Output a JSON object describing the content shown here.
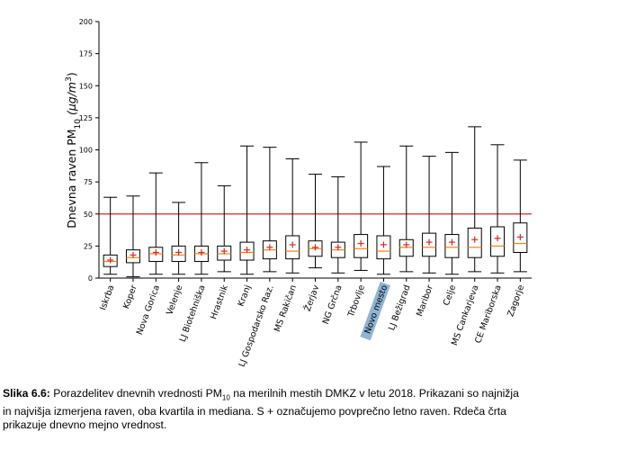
{
  "chart_data": {
    "type": "boxplot",
    "ylabel": "Dnevna raven PM",
    "ylabel_sub": "10",
    "ylabel_unit": " (µg/m",
    "ylabel_sup": "3",
    "ylabel_close": ")",
    "ylim": [
      0,
      200
    ],
    "yticks": [
      0,
      25,
      50,
      75,
      100,
      125,
      150,
      175,
      200
    ],
    "limit_value": 50,
    "limit_color": "#d62728",
    "median_color": "#ff7f0e",
    "mean_color": "#d62728",
    "highlight_color": "#8fb4d4",
    "highlight_category": "Novo mesto",
    "categories": [
      "Iskrba",
      "Koper",
      "Nova Gorica",
      "Velenje",
      "LJ Biotehniška",
      "Hrastnik",
      "Kranj",
      "LJ Gospodarsko Raz.",
      "MS Rakičan",
      "Žerjav",
      "NG Grčna",
      "Trbovlje",
      "Novo mesto",
      "LJ Bežigrad",
      "Maribor",
      "Celje",
      "MS Cankarjeva",
      "CE Mariborska",
      "Zagorje"
    ],
    "series": [
      {
        "whisker_low": [
          3,
          1,
          3,
          3,
          3,
          5,
          3,
          5,
          4,
          8,
          4,
          6,
          3,
          5,
          4,
          3,
          5,
          4,
          5
        ],
        "q1": [
          9,
          12,
          13,
          13,
          13,
          14,
          14,
          15,
          15,
          17,
          16,
          16,
          15,
          17,
          17,
          16,
          16,
          17,
          20
        ],
        "median": [
          13,
          16,
          19,
          18,
          19,
          19,
          20,
          22,
          21,
          23,
          22,
          23,
          21,
          24,
          24,
          24,
          24,
          25,
          27
        ],
        "q3": [
          18,
          22,
          24,
          25,
          25,
          25,
          28,
          29,
          33,
          29,
          28,
          34,
          33,
          30,
          35,
          34,
          39,
          40,
          43
        ],
        "whisker_high": [
          63,
          64,
          82,
          59,
          90,
          72,
          103,
          102,
          93,
          81,
          79,
          106,
          87,
          103,
          95,
          98,
          118,
          104,
          92
        ],
        "mean": [
          14,
          18,
          20,
          20,
          20,
          21,
          22,
          24,
          26,
          24,
          24,
          27,
          26,
          26,
          28,
          28,
          30,
          31,
          32
        ]
      }
    ]
  },
  "caption": {
    "label": "Slika 6.6:",
    "line1_a": " Porazdelitev dnevnih vrednosti PM",
    "line1_sub": "10",
    "line1_b": " na merilnih mestih DMKZ v letu 2018. Prikazani so najnižja",
    "line2": "in najvišja izmerjena raven, oba kvartila in mediana. S + označujemo povprečno letno raven. Rdeča črta",
    "line3": "prikazuje dnevno mejno vrednost."
  }
}
